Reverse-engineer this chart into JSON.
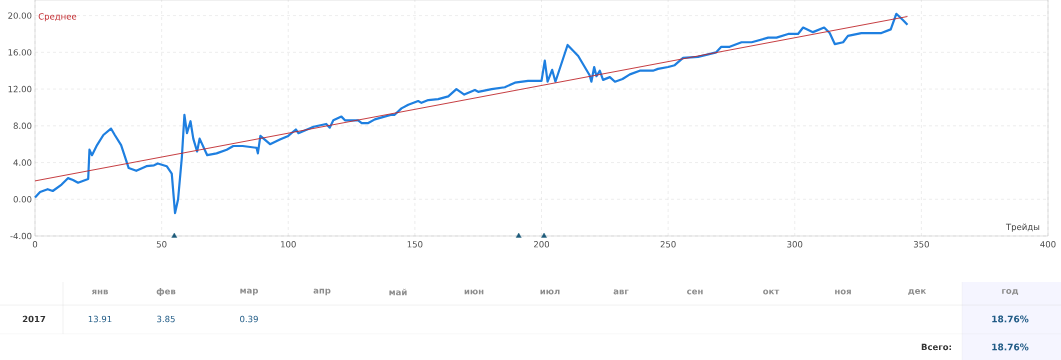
{
  "chart_data": {
    "type": "line",
    "xlabel": "Трейды",
    "xlim": [
      0,
      400
    ],
    "xticks": [
      0,
      50,
      100,
      150,
      200,
      250,
      300,
      350,
      400
    ],
    "ylim": [
      -4,
      21.7
    ],
    "yticks": [
      {
        "value": -4,
        "label": "-4.00"
      },
      {
        "value": 0,
        "label": "0.00"
      },
      {
        "value": 4,
        "label": "4.00"
      },
      {
        "value": 8,
        "label": "8.00"
      },
      {
        "value": 12,
        "label": "12.00"
      },
      {
        "value": 16,
        "label": "16.00"
      },
      {
        "value": 20,
        "label": "20.00"
      }
    ],
    "grid": true,
    "legend": "top left",
    "line_style": "solid",
    "series": [
      {
        "color": "#1e7fe0",
        "x": [
          0,
          2,
          5,
          7,
          10.5,
          13,
          15,
          17,
          21,
          21.5,
          22.5,
          24.5,
          27,
          30,
          31.5,
          34,
          37,
          40,
          44,
          47,
          48.5,
          52,
          54,
          55.3,
          56.5,
          58,
          59,
          60,
          61.4,
          62.5,
          64,
          65,
          68,
          71.7,
          75.7,
          78.3,
          82,
          87.5,
          88,
          89,
          92.8,
          96.7,
          100,
          103,
          104,
          110,
          115,
          116.4,
          117.8,
          121,
          122.4,
          125,
          127.6,
          129,
          131.6,
          134.2,
          138,
          140.8,
          142,
          144.7,
          147.4,
          151.3,
          152.6,
          155.3,
          159.2,
          163.2,
          166.4,
          169.5,
          173.7,
          175,
          180.3,
          185.5,
          189.5,
          194.7,
          200,
          201.3,
          202.4,
          204.2,
          205.5,
          210.3,
          214.5,
          219,
          219.7,
          220.8,
          221.7,
          223,
          224.3,
          227,
          229,
          232,
          234.9,
          238.8,
          244,
          246,
          250,
          252.6,
          255.9,
          261.8,
          269,
          271,
          274.3,
          279,
          283,
          289.5,
          292.8,
          297.4,
          301.3,
          303.3,
          307.2,
          311.6,
          313.8,
          315.8,
          319.1,
          321,
          326.3,
          334.2,
          337.9,
          340.1,
          342.8,
          344.5
        ],
        "values": [
          0.2,
          0.8,
          1.1,
          0.9,
          1.6,
          2.3,
          2.1,
          1.8,
          2.2,
          5.4,
          4.8,
          5.9,
          7.0,
          7.7,
          7.0,
          5.9,
          3.4,
          3.1,
          3.6,
          3.7,
          3.9,
          3.6,
          2.8,
          -1.5,
          0,
          4.6,
          9.2,
          7.2,
          8.5,
          6.6,
          5.2,
          6.6,
          4.8,
          5.0,
          5.4,
          5.8,
          5.8,
          5.6,
          5.0,
          6.9,
          6.0,
          6.5,
          6.9,
          7.6,
          7.2,
          7.9,
          8.2,
          7.8,
          8.6,
          9.0,
          8.6,
          8.6,
          8.6,
          8.3,
          8.3,
          8.7,
          9.0,
          9.2,
          9.2,
          9.9,
          10.3,
          10.7,
          10.5,
          10.8,
          10.9,
          11.2,
          12.0,
          11.4,
          11.9,
          11.7,
          12.0,
          12.2,
          12.7,
          12.9,
          12.9,
          15.1,
          12.8,
          14.1,
          12.8,
          16.8,
          15.6,
          13.5,
          12.8,
          14.4,
          13.4,
          14.0,
          13.0,
          13.3,
          12.8,
          13.1,
          13.6,
          14.0,
          14.0,
          14.2,
          14.4,
          14.6,
          15.4,
          15.5,
          16.0,
          16.6,
          16.6,
          17.1,
          17.1,
          17.6,
          17.6,
          18.0,
          18.0,
          18.7,
          18.2,
          18.7,
          18.1,
          16.9,
          17.1,
          17.8,
          18.1,
          18.1,
          18.5,
          20.2,
          19.5,
          19.0
        ]
      },
      {
        "name": "Среднее",
        "color": "#c0282d",
        "x": [
          0,
          344.5
        ],
        "values": [
          2.0,
          19.9
        ]
      },
      {
        "type": "scatter",
        "marker": "triangle",
        "color": "#1d5a7a",
        "x": [
          55,
          191,
          201
        ],
        "values": [
          -4,
          -4,
          -4
        ]
      }
    ],
    "annotations": [
      "янв",
      "фев",
      "мар",
      "апр",
      "май",
      "июн",
      "июл",
      "авг",
      "сен",
      "окт",
      "ноя",
      "дек",
      "год",
      "2017",
      "13.91",
      "3.85",
      "0.39",
      "18.76%",
      "Всего:",
      "18.76%"
    ]
  }
}
